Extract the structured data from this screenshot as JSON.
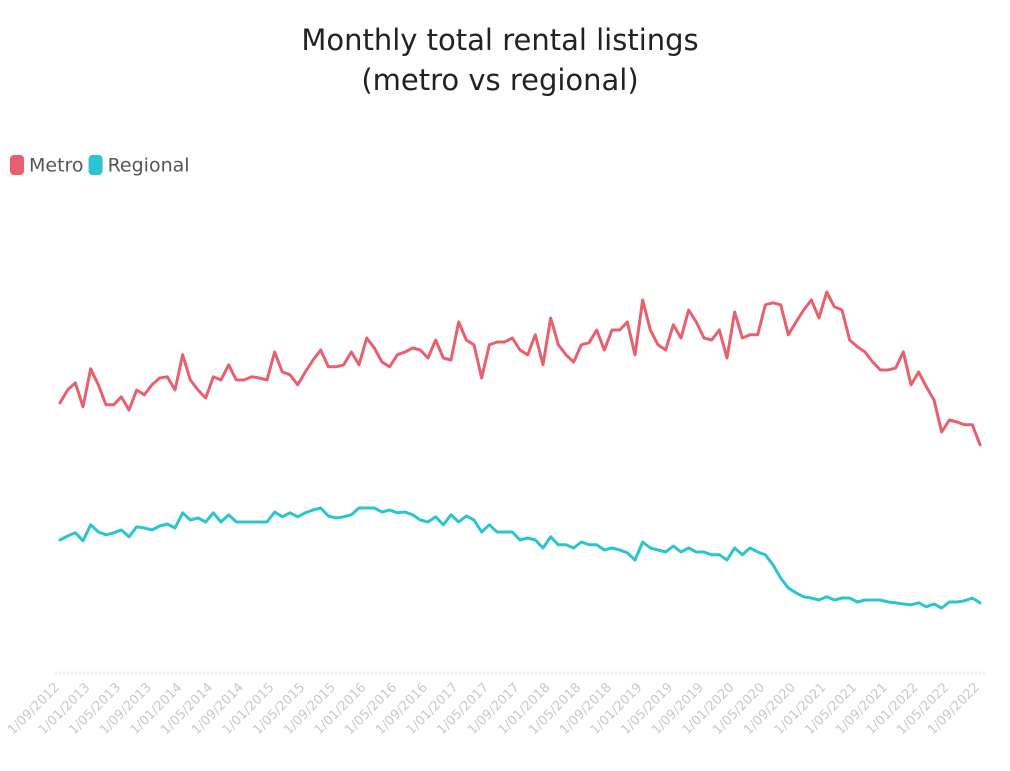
{
  "chart_data": {
    "type": "line",
    "title": [
      "Monthly total rental listings",
      "(metro vs regional)"
    ],
    "categories": [
      "1/09/2012",
      null,
      null,
      null,
      "1/01/2013",
      null,
      null,
      null,
      "1/05/2013",
      null,
      null,
      null,
      "1/09/2013",
      null,
      null,
      null,
      "1/01/2014",
      null,
      null,
      null,
      "1/05/2014",
      null,
      null,
      null,
      "1/09/2014",
      null,
      null,
      null,
      "1/01/2015",
      null,
      null,
      null,
      "1/05/2015",
      null,
      null,
      null,
      "1/09/2015",
      null,
      null,
      null,
      "1/01/2016",
      null,
      null,
      null,
      "1/05/2016",
      null,
      null,
      null,
      "1/09/2016",
      null,
      null,
      null,
      "1/01/2017",
      null,
      null,
      null,
      "1/05/2017",
      null,
      null,
      null,
      "1/09/2017",
      null,
      null,
      null,
      "1/01/2018",
      null,
      null,
      null,
      "1/05/2018",
      null,
      null,
      null,
      "1/09/2018",
      null,
      null,
      null,
      "1/01/2019",
      null,
      null,
      null,
      "1/05/2019",
      null,
      null,
      null,
      "1/09/2019",
      null,
      null,
      null,
      "1/01/2020",
      null,
      null,
      null,
      "1/05/2020",
      null,
      null,
      null,
      "1/09/2020",
      null,
      null,
      null,
      "1/01/2021",
      null,
      null,
      null,
      "1/05/2021",
      null,
      null,
      null,
      "1/09/2021",
      null,
      null,
      null,
      "1/01/2022",
      null,
      null,
      null,
      "1/05/2022",
      null,
      null,
      null,
      "1/09/2022"
    ],
    "series": [
      {
        "name": "Metro",
        "color": "#e8606e",
        "values": [
          67.3,
          70.5,
          72.3,
          66.3,
          75.8,
          71.8,
          66.8,
          66.8,
          68.8,
          65.5,
          70.5,
          69.3,
          71.8,
          73.5,
          73.8,
          70.5,
          79.3,
          73,
          70.5,
          68.5,
          73.8,
          73,
          76.8,
          73,
          73,
          73.8,
          73.5,
          73,
          80,
          75,
          74.3,
          71.8,
          75,
          78,
          80.5,
          76.3,
          76.3,
          76.8,
          80,
          76.8,
          83.5,
          81,
          77.5,
          76.3,
          79.3,
          80,
          81,
          80.5,
          78.5,
          83,
          78.5,
          78,
          87.5,
          83,
          81.8,
          73.5,
          81.8,
          82.5,
          82.5,
          83.5,
          80.5,
          79.3,
          84.3,
          76.8,
          88.5,
          81.8,
          79.3,
          77.5,
          81.8,
          82.3,
          85.5,
          80.5,
          85.5,
          85.5,
          87.5,
          79.3,
          93,
          85.5,
          81.8,
          80.5,
          86.8,
          83.5,
          90.5,
          87.5,
          83.5,
          83,
          85.5,
          78.5,
          90,
          83.5,
          84.3,
          84.3,
          91.8,
          92.3,
          91.8,
          84.3,
          87.5,
          90.5,
          93,
          88.5,
          95,
          91.3,
          90.5,
          83,
          81.3,
          80,
          77.5,
          75.5,
          75.5,
          76,
          80,
          71.8,
          75,
          71.3,
          68,
          60,
          63,
          62.5,
          61.8,
          61.8,
          56.8
        ]
      },
      {
        "name": "Regional",
        "color": "#2bc5cf",
        "values": [
          33,
          34,
          34.8,
          32.8,
          36.8,
          35,
          34.3,
          34.8,
          35.5,
          33.8,
          36.3,
          36,
          35.5,
          36.5,
          37,
          36,
          39.8,
          38,
          38.5,
          37.5,
          39.8,
          37.5,
          39.3,
          37.5,
          37.5,
          37.5,
          37.5,
          37.5,
          40,
          38.8,
          39.8,
          38.8,
          39.8,
          40.5,
          41,
          39,
          38.5,
          38.8,
          39.3,
          41,
          41,
          41,
          40,
          40.5,
          39.8,
          40,
          39.3,
          38,
          37.5,
          38.8,
          36.8,
          39.3,
          37.5,
          39,
          38,
          35,
          36.8,
          35,
          35,
          35,
          33,
          33.5,
          33,
          31,
          33.8,
          31.8,
          31.8,
          31,
          32.5,
          31.8,
          31.8,
          30.5,
          31,
          30.5,
          29.8,
          28,
          32.5,
          31,
          30.5,
          30,
          31.5,
          30,
          31,
          30,
          30,
          29.3,
          29.3,
          28,
          31,
          29.3,
          31,
          30,
          29.3,
          26.8,
          23.5,
          21,
          19.8,
          18.8,
          18.5,
          18,
          18.8,
          18,
          18.5,
          18.5,
          17.5,
          18,
          18,
          18,
          17.5,
          17.3,
          17,
          16.8,
          17.3,
          16.3,
          17,
          16,
          17.5,
          17.5,
          17.8,
          18.5,
          17.3
        ]
      }
    ],
    "ylim": [
      0,
      100
    ],
    "legend": "top-left"
  }
}
